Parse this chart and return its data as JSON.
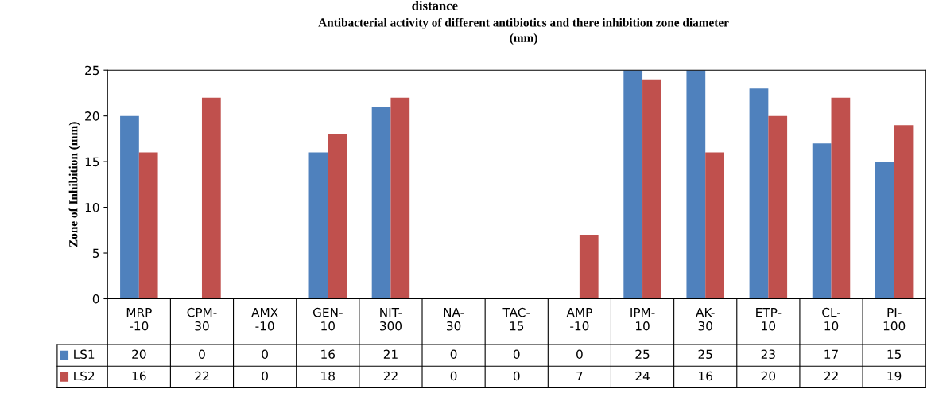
{
  "chart_data": {
    "type": "bar",
    "title": "Antibacterial activity of different antibiotics and there inhibition zone diameter\n(mm)",
    "ylabel": "Zone of Inhibition (mm)",
    "annotations": [
      "distance"
    ],
    "categories": [
      "MRP\n-10",
      "CPM-\n30",
      "AMX\n-10",
      "GEN-\n10",
      "NIT-\n300",
      "NA-\n30",
      "TAC-\n15",
      "AMP\n-10",
      "IPM-\n10",
      "AK-\n30",
      "ETP-\n10",
      "CL-\n10",
      "PI-\n100"
    ],
    "series": [
      {
        "name": "LS1",
        "color": "#4f81bd",
        "values": [
          20,
          0,
          0,
          16,
          21,
          0,
          0,
          0,
          25,
          25,
          23,
          17,
          15
        ]
      },
      {
        "name": "LS2",
        "color": "#c0504d",
        "values": [
          16,
          22,
          0,
          18,
          22,
          0,
          0,
          7,
          24,
          16,
          20,
          22,
          19
        ]
      }
    ],
    "ylim": [
      0,
      25
    ],
    "yticks": [
      0,
      5,
      10,
      15,
      20,
      25
    ],
    "grid": false,
    "legend": "bottom left",
    "data_labels": true
  }
}
